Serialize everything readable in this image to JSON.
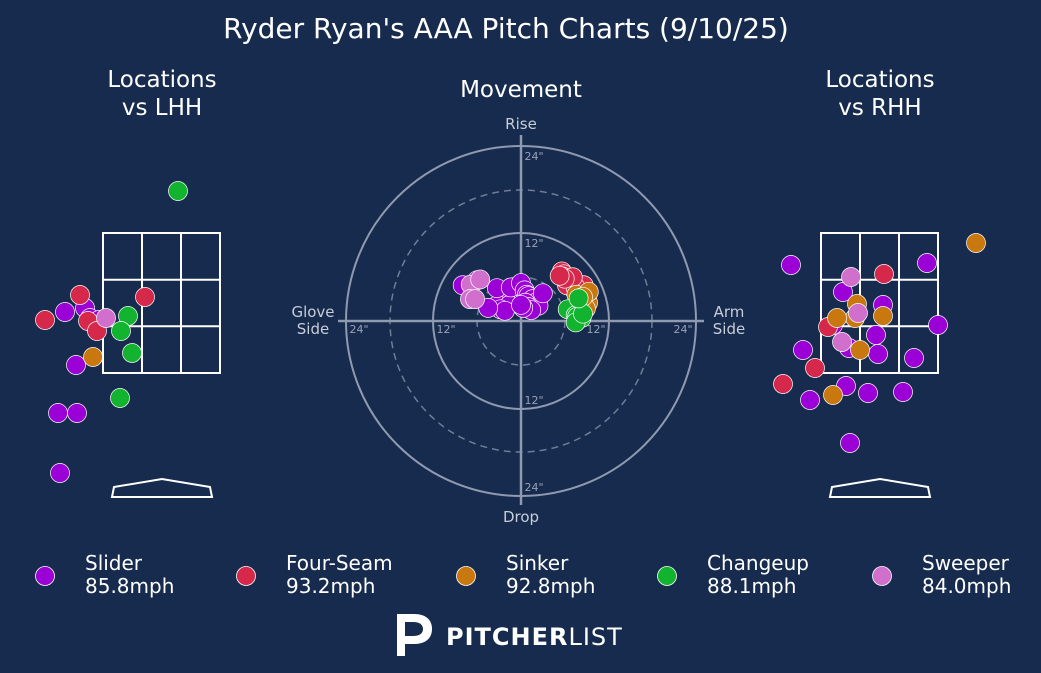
{
  "title": "Ryder Ryan's AAA Pitch Charts (9/10/25)",
  "brand": {
    "bold": "PITCHER",
    "light": "LIST"
  },
  "colors": {
    "background": "#162b4d",
    "Slider": "#9b00d6",
    "Four-Seam": "#d6284a",
    "Sinker": "#c8780e",
    "Changeup": "#12b32e",
    "Sweeper": "#d070cc"
  },
  "legend": [
    {
      "pitch": "Slider",
      "speed": "85.8mph"
    },
    {
      "pitch": "Four-Seam",
      "speed": "93.2mph"
    },
    {
      "pitch": "Sinker",
      "speed": "92.8mph"
    },
    {
      "pitch": "Changeup",
      "speed": "88.1mph"
    },
    {
      "pitch": "Sweeper",
      "speed": "84.0mph"
    }
  ],
  "chart_data": [
    {
      "type": "scatter",
      "panel": "lhh",
      "title_lines": [
        "Locations",
        "vs LHH"
      ],
      "series": [
        {
          "name": "Slider",
          "points": [
            [
              58,
              413
            ],
            [
              76,
              365
            ],
            [
              85,
              308
            ],
            [
              90,
              318
            ],
            [
              99,
              320
            ],
            [
              77,
              413
            ],
            [
              60,
              473
            ],
            [
              65,
              312
            ]
          ]
        },
        {
          "name": "Four-Seam",
          "points": [
            [
              80,
              295
            ],
            [
              45,
              320
            ],
            [
              88,
              321
            ],
            [
              97,
              331
            ],
            [
              145,
              297
            ]
          ]
        },
        {
          "name": "Sinker",
          "points": [
            [
              93,
              357
            ]
          ]
        },
        {
          "name": "Changeup",
          "points": [
            [
              178,
              191
            ],
            [
              128,
              316
            ],
            [
              121,
              331
            ],
            [
              132,
              353
            ],
            [
              120,
              398
            ]
          ]
        },
        {
          "name": "Sweeper",
          "points": [
            [
              106,
              318
            ]
          ]
        }
      ]
    },
    {
      "type": "scatter",
      "panel": "movement",
      "title": "Movement",
      "labels": {
        "top": "Rise",
        "bottom": "Drop",
        "left": [
          "Glove",
          "Side"
        ],
        "right": [
          "Arm",
          "Side"
        ]
      },
      "rings": [
        "12\"",
        "24\""
      ],
      "series": [
        {
          "name": "Slider",
          "points": [
            [
              -8.0,
              4.9
            ],
            [
              -2.5,
              4.0
            ],
            [
              -2.2,
              3.8
            ],
            [
              -2.6,
              2.8
            ],
            [
              -2.0,
              2.5
            ],
            [
              -3.2,
              2.2
            ],
            [
              -1.6,
              2.2
            ],
            [
              -2.8,
              1.6
            ],
            [
              -2.2,
              1.4
            ],
            [
              -6.0,
              5.6
            ],
            [
              -3.3,
              4.5
            ],
            [
              -1.4,
              4.6
            ],
            [
              0,
              5.2
            ],
            [
              0.5,
              4.2
            ],
            [
              0.8,
              3.6
            ],
            [
              1.0,
              3.4
            ],
            [
              1.6,
              3.0
            ],
            [
              2.0,
              2.5
            ],
            [
              2.4,
              2.1
            ],
            [
              0.6,
              2.5
            ],
            [
              1.0,
              1.9
            ],
            [
              1.4,
              1.5
            ],
            [
              0.3,
              1.8
            ],
            [
              -4.5,
              1.8
            ],
            [
              0,
              2.2
            ],
            [
              3.0,
              3.8
            ]
          ]
        },
        {
          "name": "Four-Seam",
          "points": [
            [
              5.6,
              6.8
            ],
            [
              5.9,
              6.4
            ],
            [
              5.7,
              6.1
            ],
            [
              6.1,
              5.6
            ],
            [
              6.4,
              5.3
            ],
            [
              6.7,
              4.8
            ],
            [
              7.2,
              4.4
            ],
            [
              6.3,
              4.9
            ],
            [
              8.6,
              4.9
            ],
            [
              7.5,
              4.6
            ],
            [
              7.1,
              6.0
            ],
            [
              6.0,
              5.8
            ],
            [
              5.3,
              6.2
            ]
          ]
        },
        {
          "name": "Sinker",
          "points": [
            [
              7.6,
              3.6
            ],
            [
              8.2,
              3.2
            ],
            [
              8.5,
              2.9
            ],
            [
              8.9,
              2.4
            ],
            [
              9.2,
              2.5
            ],
            [
              8.9,
              1.7
            ],
            [
              9.3,
              4.0
            ],
            [
              8.5,
              3.3
            ]
          ]
        },
        {
          "name": "Changeup",
          "points": [
            [
              6.4,
              1.6
            ],
            [
              7.5,
              0.8
            ],
            [
              8.3,
              0.4
            ],
            [
              7.7,
              0.6
            ],
            [
              7.5,
              -0.2
            ],
            [
              8.5,
              1.0
            ],
            [
              7.9,
              3.1
            ]
          ]
        },
        {
          "name": "Sweeper",
          "points": [
            [
              -6.9,
              5.0
            ],
            [
              -5.6,
              5.7
            ],
            [
              -7.0,
              3.0
            ],
            [
              -6.3,
              3.0
            ]
          ]
        }
      ]
    },
    {
      "type": "scatter",
      "panel": "rhh",
      "title_lines": [
        "Locations",
        "vs RHH"
      ],
      "series": [
        {
          "name": "Slider",
          "points": [
            [
              791,
              265
            ],
            [
              843,
              292
            ],
            [
              883,
              305
            ],
            [
              927,
              263
            ],
            [
              938,
              325
            ],
            [
              876,
              335
            ],
            [
              833,
              325
            ],
            [
              878,
              354
            ],
            [
              803,
              350
            ],
            [
              849,
              348
            ],
            [
              914,
              358
            ],
            [
              846,
              386
            ],
            [
              868,
              393
            ],
            [
              903,
              392
            ],
            [
              810,
              400
            ],
            [
              850,
              443
            ]
          ]
        },
        {
          "name": "Four-Seam",
          "points": [
            [
              884,
              274
            ],
            [
              828,
              327
            ],
            [
              815,
              368
            ],
            [
              783,
              384
            ]
          ]
        },
        {
          "name": "Sinker",
          "points": [
            [
              976,
              243
            ],
            [
              857,
              304
            ],
            [
              855,
              318
            ],
            [
              883,
              316
            ],
            [
              837,
              318
            ],
            [
              860,
              350
            ],
            [
              833,
              395
            ]
          ]
        },
        {
          "name": "Changeup",
          "points": []
        },
        {
          "name": "Sweeper",
          "points": [
            [
              851,
              277
            ],
            [
              842,
              342
            ],
            [
              858,
              313
            ]
          ]
        }
      ]
    }
  ]
}
